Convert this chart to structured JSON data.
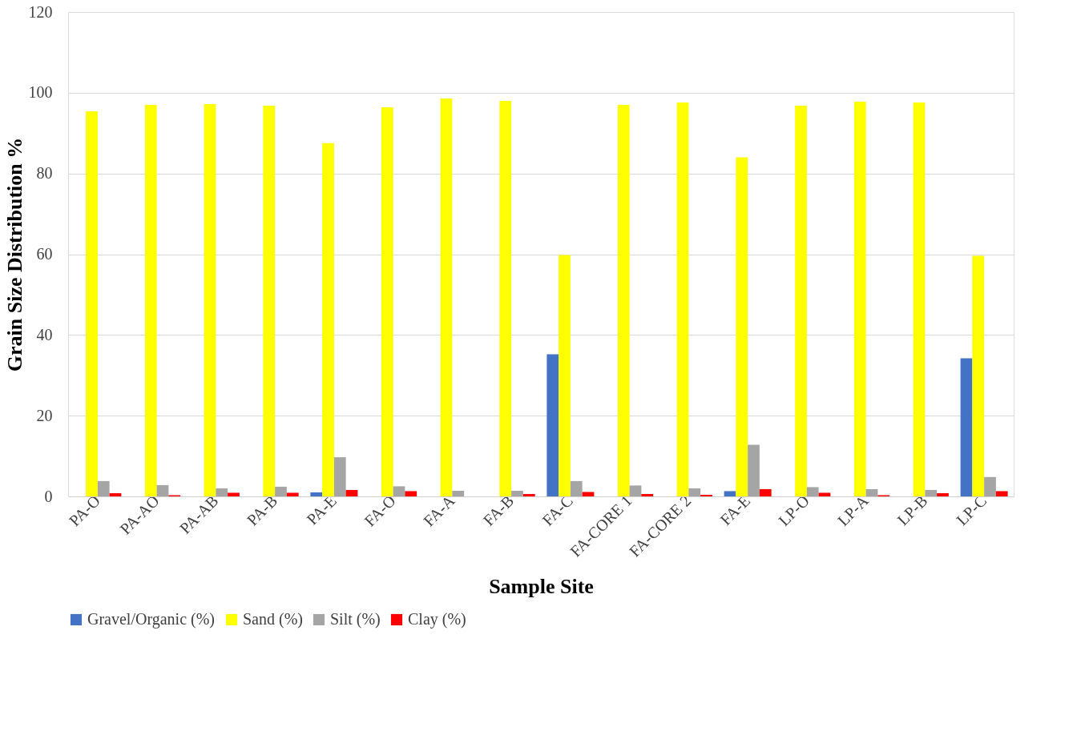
{
  "chart_data": {
    "type": "bar",
    "xlabel": "Sample Site",
    "ylabel": "Grain Size Distribution %",
    "categories": [
      "PA-O",
      "PA-AO",
      "PA-AB",
      "PA-B",
      "PA-E",
      "FA-O",
      "FA-A",
      "FA-B",
      "FA-C",
      "FA-CORE 1",
      "FA-CORE 2",
      "FA-E",
      "LP-O",
      "LP-A",
      "LP-B",
      "LP-C"
    ],
    "series": [
      {
        "name": "Gravel/Organic (%)",
        "color": "#4472c4",
        "values": [
          0,
          0,
          0,
          0,
          1.0,
          0,
          0,
          0,
          35.2,
          0,
          0,
          1.3,
          0,
          0,
          0,
          34.2
        ]
      },
      {
        "name": "Sand (%)",
        "color": "#ffff00",
        "values": [
          95.4,
          97.0,
          97.2,
          96.8,
          87.5,
          96.4,
          98.6,
          98.0,
          59.8,
          97.0,
          97.6,
          84.0,
          96.8,
          97.8,
          97.6,
          59.6
        ]
      },
      {
        "name": "Silt (%)",
        "color": "#a5a5a5",
        "values": [
          3.8,
          2.8,
          2.0,
          2.4,
          9.7,
          2.5,
          1.4,
          1.4,
          3.8,
          2.7,
          2.0,
          12.8,
          2.3,
          1.8,
          1.6,
          4.8
        ]
      },
      {
        "name": "Clay (%)",
        "color": "#ff0000",
        "values": [
          0.8,
          0.3,
          0.9,
          0.9,
          1.6,
          1.3,
          0,
          0.6,
          1.1,
          0.6,
          0.4,
          1.8,
          0.9,
          0.3,
          0.8,
          1.3
        ]
      }
    ],
    "ylim": [
      0,
      120
    ],
    "yticks": [
      0,
      20,
      40,
      60,
      80,
      100,
      120
    ],
    "grid": "y",
    "legend": "bottom"
  }
}
